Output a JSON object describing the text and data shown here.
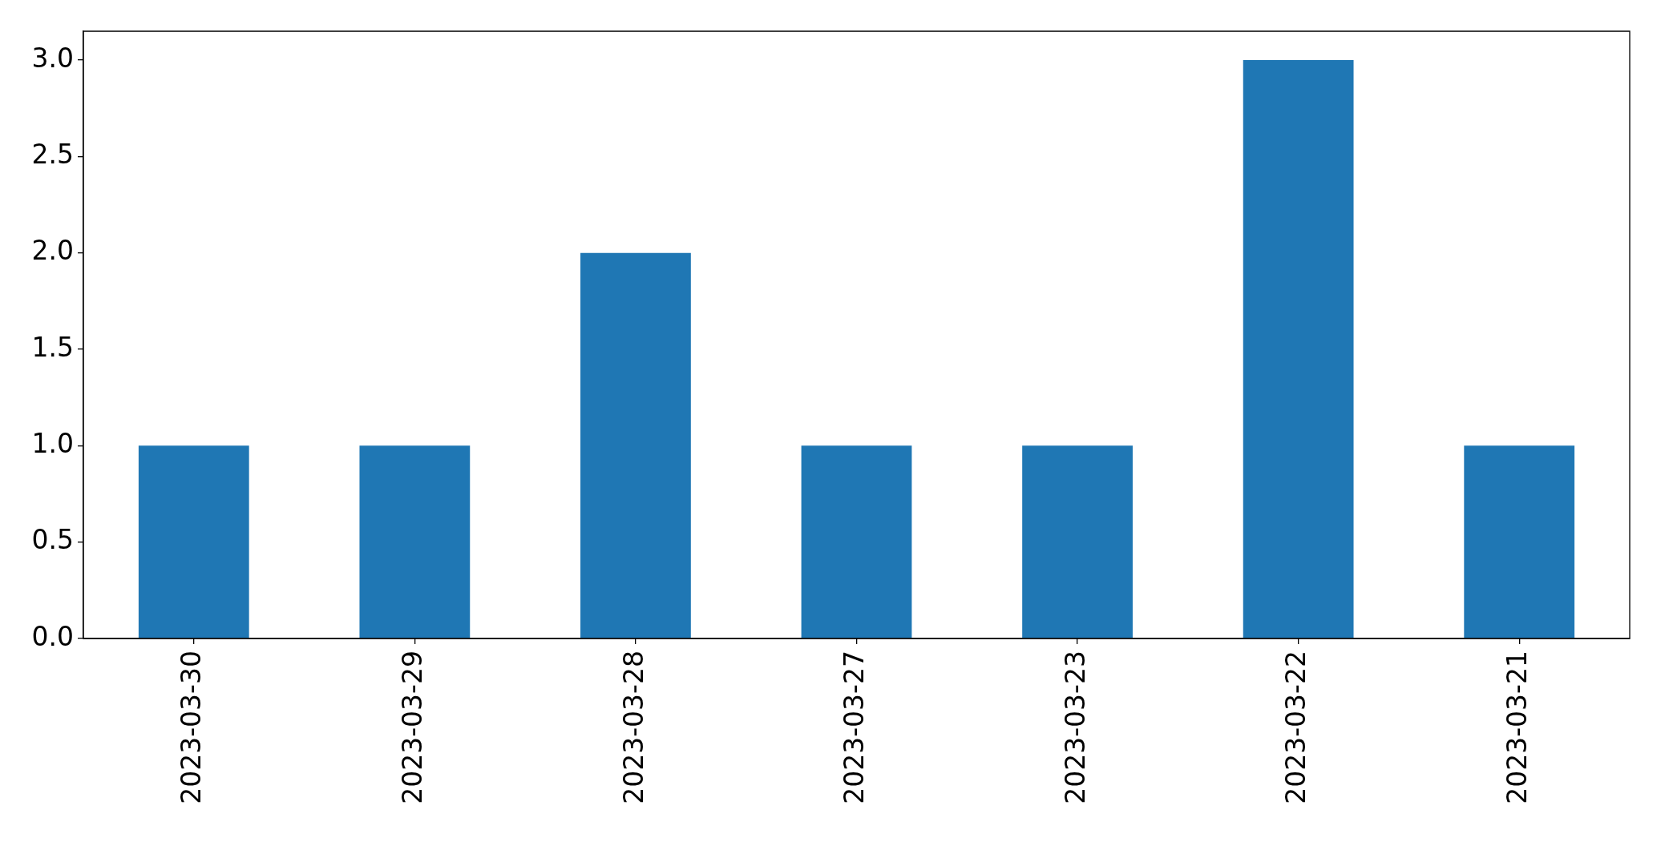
{
  "chart_data": {
    "type": "bar",
    "categories": [
      "2023-03-30",
      "2023-03-29",
      "2023-03-28",
      "2023-03-27",
      "2023-03-23",
      "2023-03-22",
      "2023-03-21"
    ],
    "values": [
      1,
      1,
      2,
      1,
      1,
      3,
      1
    ],
    "color": "#1f77b4",
    "ylim": [
      0,
      3.15
    ],
    "yticks": [
      {
        "value": 0,
        "label": "0.0"
      },
      0.5,
      {
        "value": 1,
        "label": "1.0"
      },
      1.5,
      {
        "value": 2,
        "label": "2.0"
      },
      2.5,
      {
        "value": 3,
        "label": "3.0"
      }
    ]
  }
}
